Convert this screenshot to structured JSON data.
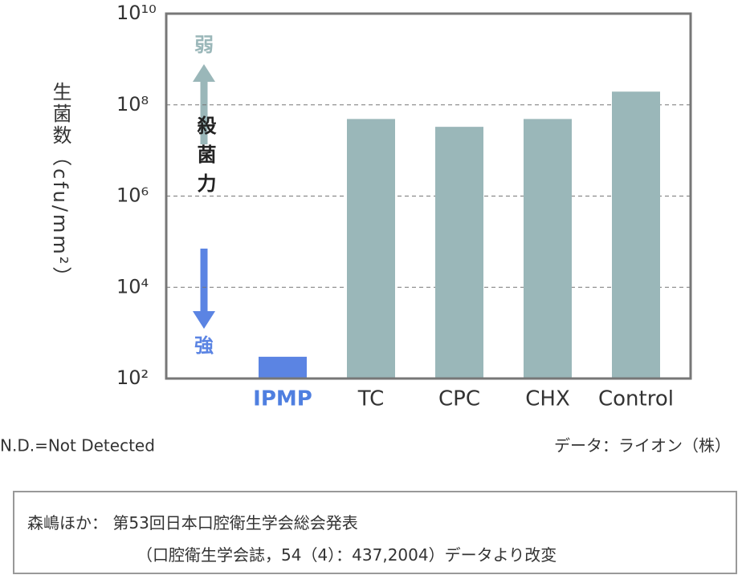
{
  "chart_data": {
    "type": "bar",
    "y_label": "生菌数（cfu/mm²）",
    "categories": [
      "IPMP",
      "TC",
      "CPC",
      "CHX",
      "Control"
    ],
    "values": [
      300,
      49000000,
      33000000,
      49000000,
      195000000
    ],
    "colors": [
      "#5b84e3",
      "#9ab7b9",
      "#9ab7b9",
      "#9ab7b9",
      "#9ab7b9"
    ],
    "label_colors": [
      "#4f7fe0",
      "#333333",
      "#333333",
      "#333333",
      "#333333"
    ],
    "log_scale": true,
    "ylim": [
      100,
      10000000000
    ],
    "yticks": [
      {
        "value": 100,
        "label": "10²"
      },
      {
        "value": 10000,
        "label": "10⁴"
      },
      {
        "value": 1000000,
        "label": "10⁶"
      },
      {
        "value": 100000000,
        "label": "10⁸"
      },
      {
        "value": 10000000000,
        "label": "10¹⁰"
      }
    ],
    "grid": true,
    "weak_label": "弱",
    "strength_label": "殺菌力",
    "strong_label": "強",
    "note": "N.D.=Not Detected",
    "source": "データ：ライオン（株）"
  },
  "citation": [
    "森嶋ほか： 第53回日本口腔衛生学会総会発表",
    "（口腔衛生学会誌，54（4）：437,2004）データより改変"
  ]
}
